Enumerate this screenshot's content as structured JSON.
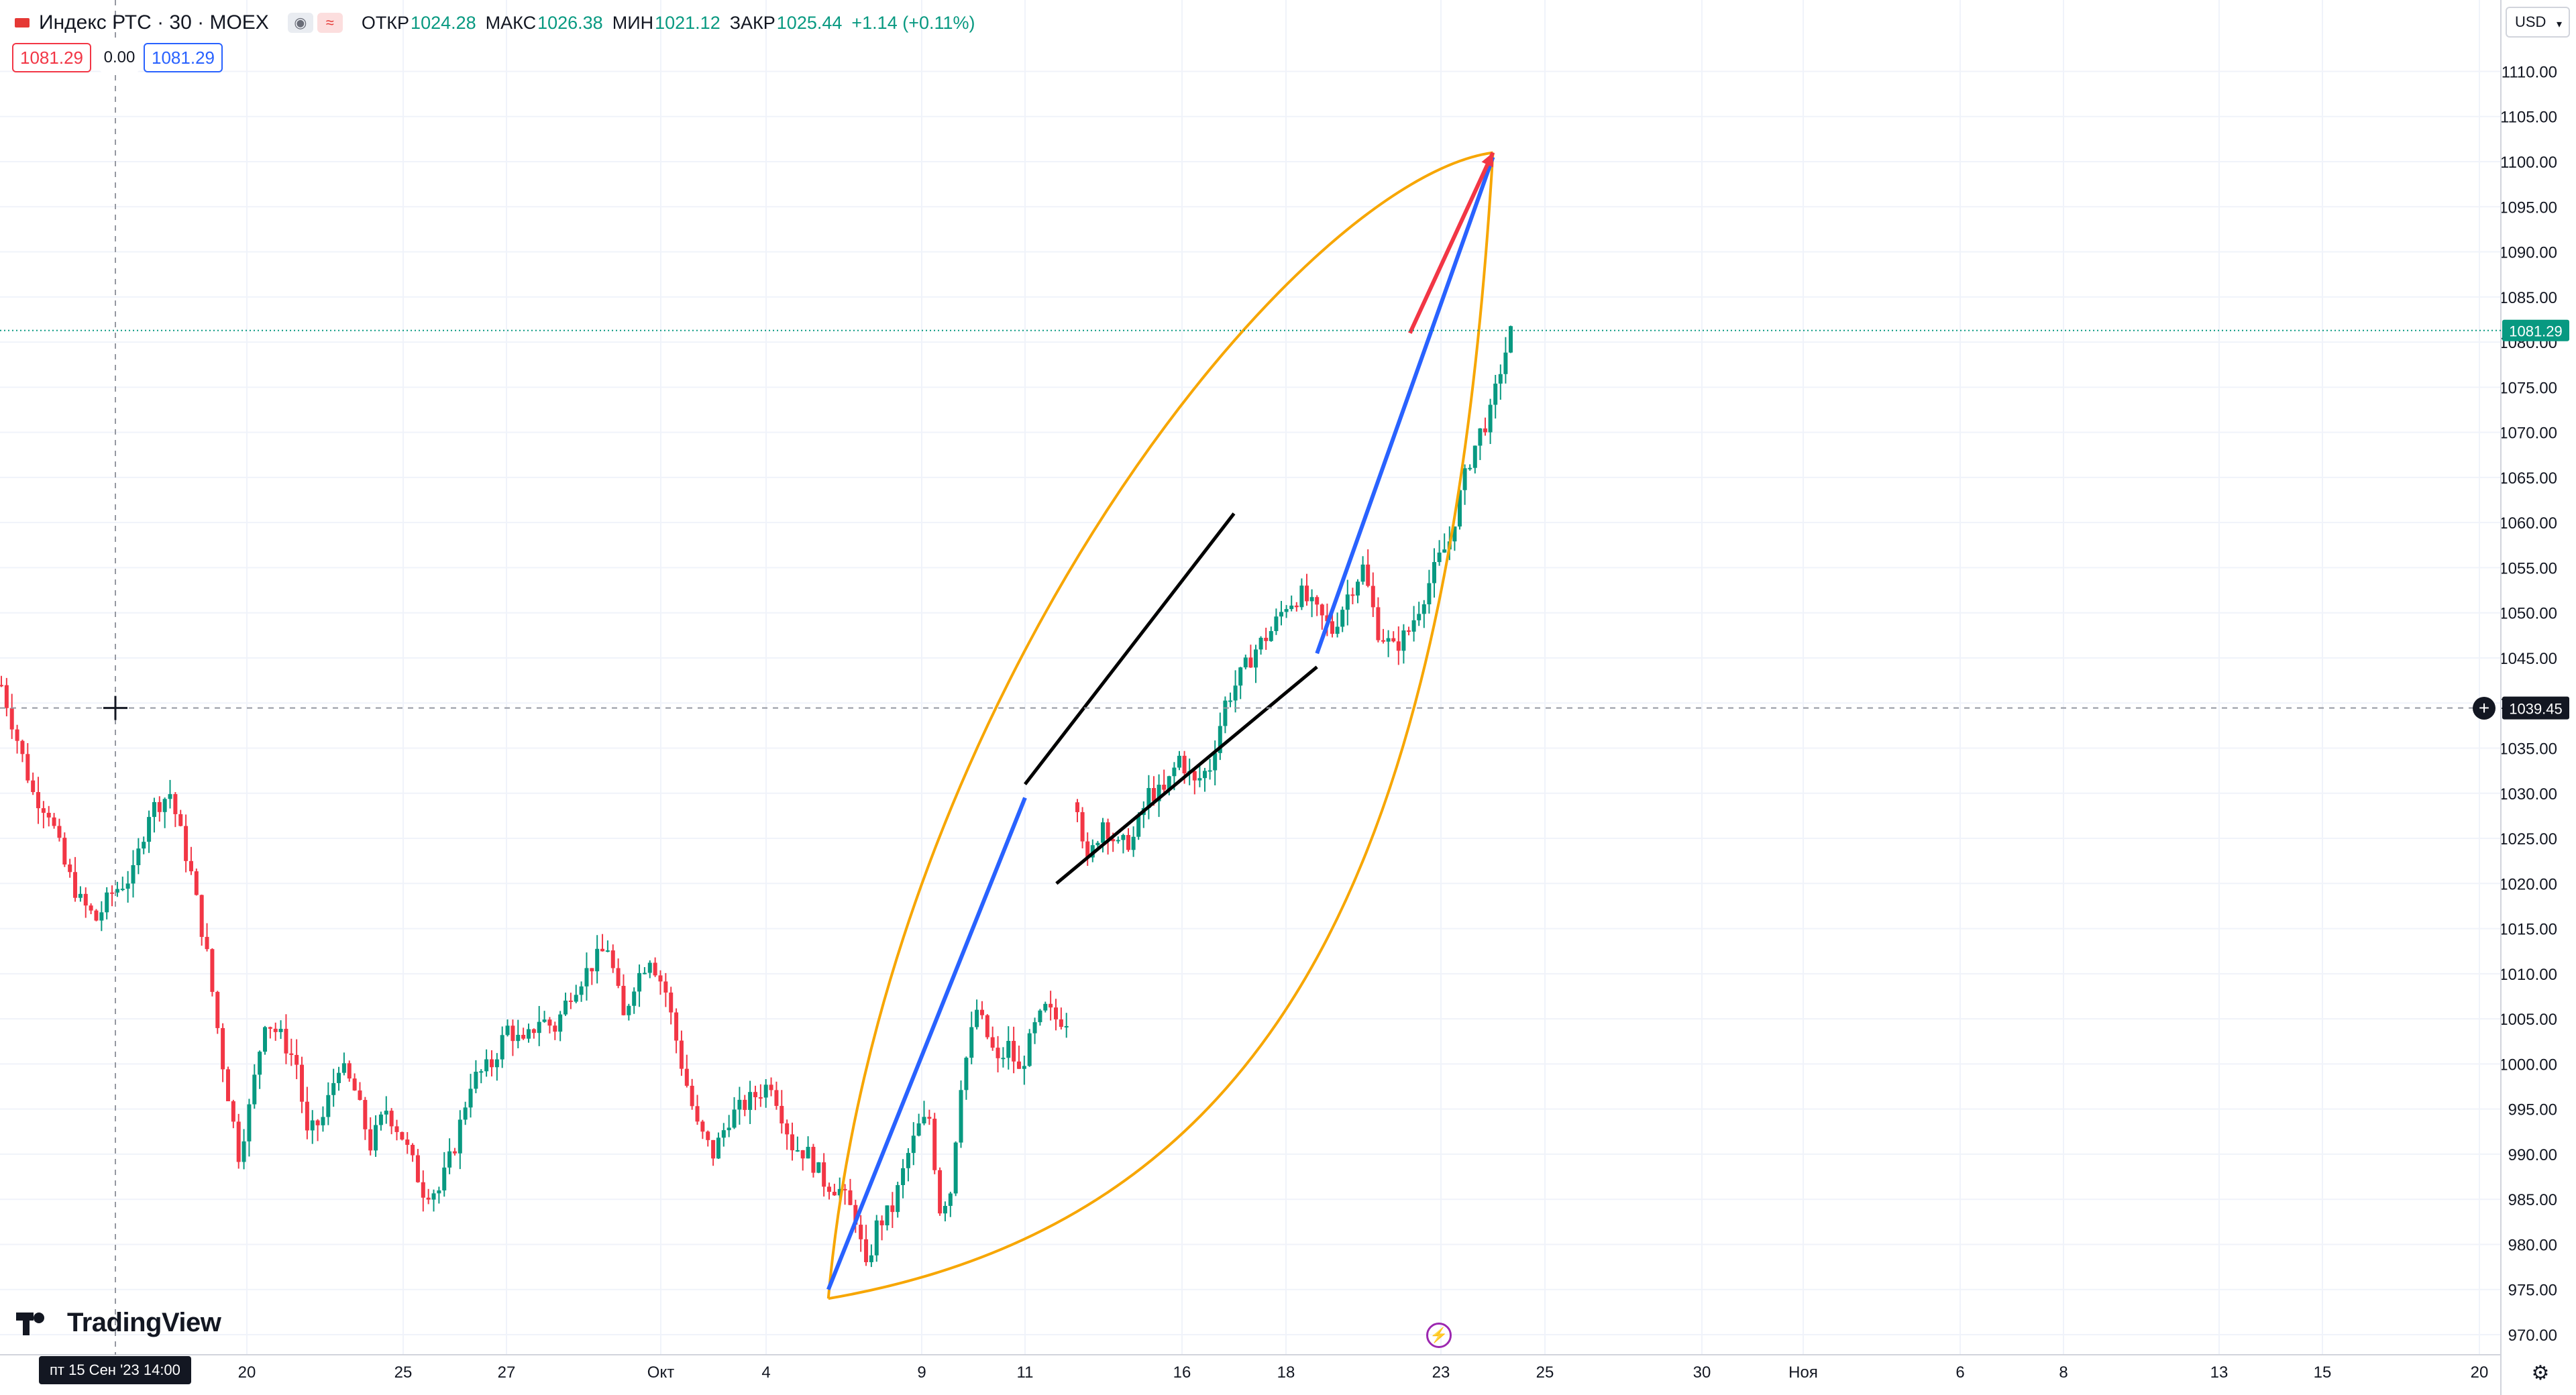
{
  "header": {
    "symbol": "Индекс РТС · 30 · MOEX",
    "ohlc": [
      {
        "label": "ОТКР",
        "value": "1024.28"
      },
      {
        "label": "МАКС",
        "value": "1026.38"
      },
      {
        "label": "МИН",
        "value": "1021.12"
      },
      {
        "label": "ЗАКР",
        "value": "1025.44"
      }
    ],
    "change": "+1.14 (+0.11%)",
    "sell_price": "1081.29",
    "spread": "0.00",
    "buy_price": "1081.29",
    "currency": "USD"
  },
  "icons": {
    "flag": "flag-icon",
    "eye": "eye-icon",
    "compare": "compare-icon",
    "caret": "chevron-down-icon",
    "flash": "lightning-icon",
    "settings": "gear-icon",
    "add": "plus-circle-icon"
  },
  "brand": {
    "name": "TradingView"
  },
  "crosshair": {
    "date_label": "пт 15 Сен '23   14:00",
    "price_label": "1039.45"
  },
  "last_price_label": "1081.29",
  "colors": {
    "up": "#089981",
    "down": "#f23645",
    "grid": "#f0f3fa",
    "orange": "#f7a600",
    "blue": "#2962ff",
    "red": "#f23645",
    "black": "#000000",
    "last_line": "#089981"
  },
  "chart_data": {
    "type": "candlestick",
    "title": "Индекс РТС · 30 · MOEX",
    "y_axis": {
      "ticks": [
        "970.00",
        "975.00",
        "980.00",
        "985.00",
        "990.00",
        "995.00",
        "1000.00",
        "1005.00",
        "1010.00",
        "1015.00",
        "1020.00",
        "1025.00",
        "1030.00",
        "1035.00",
        "1040.00",
        "1045.00",
        "1050.00",
        "1055.00",
        "1060.00",
        "1065.00",
        "1070.00",
        "1075.00",
        "1080.00",
        "1085.00",
        "1090.00",
        "1095.00",
        "1100.00",
        "1105.00",
        "1110.00"
      ],
      "range": [
        968.5,
        1114
      ]
    },
    "x_axis": {
      "ticks": [
        "20",
        "25",
        "27",
        "Окт",
        "4",
        "9",
        "11",
        "16",
        "18",
        "23",
        "25",
        "30",
        "Ноя",
        "6",
        "8",
        "13",
        "15",
        "20"
      ]
    },
    "price_path": [
      [
        0,
        1042
      ],
      [
        6,
        1030
      ],
      [
        9,
        1028
      ],
      [
        12,
        1022
      ],
      [
        15,
        1018
      ],
      [
        18,
        1016
      ],
      [
        21,
        1019
      ],
      [
        25,
        1021
      ],
      [
        28,
        1028
      ],
      [
        32,
        1030
      ],
      [
        36,
        1021
      ],
      [
        39,
        1012
      ],
      [
        42,
        1000
      ],
      [
        45,
        990
      ],
      [
        47,
        995
      ],
      [
        50,
        1005
      ],
      [
        53,
        1003
      ],
      [
        56,
        1000
      ],
      [
        58,
        992
      ],
      [
        61,
        994
      ],
      [
        64,
        1000
      ],
      [
        67,
        997
      ],
      [
        70,
        991
      ],
      [
        73,
        995
      ],
      [
        76,
        992
      ],
      [
        80,
        986
      ],
      [
        83,
        986
      ],
      [
        86,
        991
      ],
      [
        89,
        998
      ],
      [
        93,
        1000
      ],
      [
        96,
        1004
      ],
      [
        99,
        1002
      ],
      [
        102,
        1005
      ],
      [
        105,
        1004
      ],
      [
        108,
        1008
      ],
      [
        112,
        1011
      ],
      [
        115,
        1013
      ],
      [
        118,
        1005
      ],
      [
        120,
        1009
      ],
      [
        123,
        1012
      ],
      [
        126,
        1008
      ],
      [
        129,
        1000
      ],
      [
        132,
        993
      ],
      [
        135,
        990
      ],
      [
        138,
        994
      ],
      [
        142,
        996
      ],
      [
        146,
        998
      ],
      [
        150,
        991
      ],
      [
        153,
        990
      ],
      [
        156,
        987
      ],
      [
        159,
        986
      ],
      [
        162,
        983
      ],
      [
        164,
        977
      ],
      [
        166,
        982
      ],
      [
        169,
        984
      ],
      [
        172,
        990
      ],
      [
        174,
        993
      ],
      [
        176,
        994
      ],
      [
        178,
        984
      ],
      [
        180,
        986
      ],
      [
        182,
        998
      ],
      [
        185,
        1006
      ],
      [
        187,
        1003
      ],
      [
        189,
        1000
      ],
      [
        191,
        1002
      ],
      [
        193,
        999
      ],
      [
        196,
        1004
      ],
      [
        198,
        1006
      ],
      [
        200,
        1005
      ],
      [
        202,
        1005
      ]
    ],
    "price_path_2": [
      [
        0,
        1029
      ],
      [
        2,
        1022
      ],
      [
        5,
        1027
      ],
      [
        8,
        1024
      ],
      [
        11,
        1025
      ],
      [
        14,
        1030
      ],
      [
        17,
        1030
      ],
      [
        20,
        1034
      ],
      [
        23,
        1031
      ],
      [
        26,
        1033
      ],
      [
        29,
        1040
      ],
      [
        32,
        1043
      ],
      [
        35,
        1046
      ],
      [
        38,
        1048
      ],
      [
        41,
        1051
      ],
      [
        44,
        1052
      ],
      [
        47,
        1050
      ],
      [
        50,
        1048
      ],
      [
        53,
        1052
      ],
      [
        56,
        1055
      ],
      [
        59,
        1048
      ],
      [
        62,
        1046
      ],
      [
        65,
        1048
      ],
      [
        68,
        1052
      ],
      [
        71,
        1056
      ],
      [
        73,
        1058
      ],
      [
        75,
        1063
      ],
      [
        77,
        1067
      ],
      [
        79,
        1070
      ],
      [
        81,
        1072
      ],
      [
        83,
        1077
      ],
      [
        85,
        1081
      ]
    ],
    "annotations": {
      "blue_lines": [
        {
          "from": [
            "7 Окт",
            975
          ],
          "to": [
            "12 Окт",
            1029.5
          ]
        },
        {
          "from": [
            "20 Окт",
            1045.5
          ],
          "to": [
            "25 Окт",
            1100.5
          ]
        }
      ],
      "black_channel": [
        {
          "from": [
            "12 Окт",
            1031
          ],
          "to": [
            "18 Окт",
            1061
          ]
        },
        {
          "from": [
            "13 Окт",
            1020
          ],
          "to": [
            "20 Окт",
            1044
          ]
        }
      ],
      "red_arrow": {
        "from": [
          "23 Окт",
          1081
        ],
        "to": [
          "25 Окт",
          1101
        ]
      },
      "orange_arcs": {
        "from": [
          "7 Окт",
          974
        ],
        "to": [
          "25 Окт",
          1101
        ]
      }
    }
  }
}
